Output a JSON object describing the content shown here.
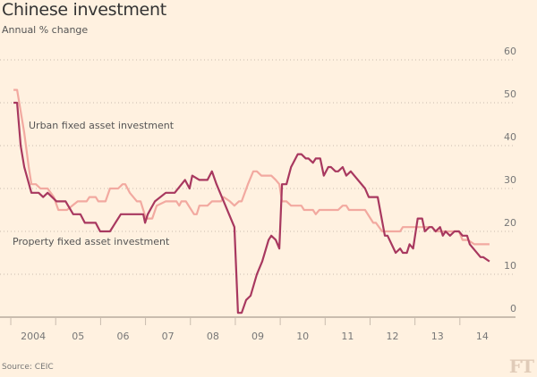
{
  "chart_data": {
    "type": "line",
    "title": "Chinese investment",
    "subtitle": "Annual % change",
    "source": "Source: CEIC",
    "logo": "FT",
    "ylim": [
      0,
      60
    ],
    "yticks": [
      0,
      10,
      20,
      30,
      40,
      50,
      60
    ],
    "xlim": [
      2003.76,
      2015.0
    ],
    "xtick_labels": [
      {
        "year": 2004,
        "label": "2004"
      },
      {
        "year": 2005,
        "label": "05"
      },
      {
        "year": 2006,
        "label": "06"
      },
      {
        "year": 2007,
        "label": "07"
      },
      {
        "year": 2008,
        "label": "08"
      },
      {
        "year": 2009,
        "label": "09"
      },
      {
        "year": 2010,
        "label": "10"
      },
      {
        "year": 2011,
        "label": "11"
      },
      {
        "year": 2012,
        "label": "12"
      },
      {
        "year": 2013,
        "label": "13"
      },
      {
        "year": 2014,
        "label": "14"
      }
    ],
    "grid": true,
    "y_axis_position": "right",
    "series": [
      {
        "name": "Urban fixed asset investment",
        "color": "#f2a9a0",
        "x": [
          2004.06,
          2004.14,
          2004.3,
          2004.4,
          2004.46,
          2004.56,
          2004.66,
          2004.82,
          2004.96,
          2005.06,
          2005.25,
          2005.49,
          2005.69,
          2005.75,
          2005.89,
          2005.95,
          2006.11,
          2006.21,
          2006.39,
          2006.49,
          2006.55,
          2006.65,
          2006.81,
          2006.89,
          2007.01,
          2007.15,
          2007.25,
          2007.45,
          2007.69,
          2007.75,
          2007.8,
          2007.9,
          2008.08,
          2008.14,
          2008.2,
          2008.38,
          2008.48,
          2008.68,
          2008.74,
          2008.88,
          2008.98,
          2009.08,
          2009.14,
          2009.28,
          2009.4,
          2009.48,
          2009.58,
          2009.74,
          2009.8,
          2009.9,
          2009.98,
          2010.04,
          2010.14,
          2010.24,
          2010.47,
          2010.53,
          2010.73,
          2010.79,
          2010.87,
          2011.29,
          2011.39,
          2011.47,
          2011.53,
          2011.89,
          2012.07,
          2012.13,
          2012.27,
          2012.67,
          2012.73,
          2013.12,
          2013.38,
          2013.46,
          2013.98,
          2014.06,
          2014.18,
          2014.32,
          2014.66
        ],
        "values": [
          53,
          53,
          43,
          35,
          31,
          31,
          30,
          30,
          28,
          25,
          25,
          27,
          27,
          28,
          28,
          27,
          27,
          30,
          30,
          31,
          31,
          29,
          27,
          27,
          23,
          23,
          26,
          27,
          27,
          26,
          27,
          27,
          24,
          24,
          26,
          26,
          27,
          27,
          28,
          27,
          26,
          27,
          27,
          31,
          34,
          34,
          33,
          33,
          33,
          32,
          31,
          27,
          27,
          26,
          26,
          25,
          25,
          24,
          25,
          25,
          26,
          26,
          25,
          25,
          22,
          22,
          20,
          20,
          21,
          21,
          21,
          20,
          20,
          18,
          18,
          17,
          17
        ]
      },
      {
        "name": "Property fixed asset investment",
        "color": "#a8385f",
        "x": [
          2004.06,
          2004.14,
          2004.22,
          2004.3,
          2004.46,
          2004.62,
          2004.72,
          2004.82,
          2005.02,
          2005.22,
          2005.39,
          2005.55,
          2005.65,
          2005.89,
          2005.99,
          2006.21,
          2006.45,
          2006.95,
          2006.99,
          2007.05,
          2007.21,
          2007.45,
          2007.65,
          2007.88,
          2007.98,
          2008.04,
          2008.2,
          2008.38,
          2008.48,
          2008.58,
          2008.98,
          2009.06,
          2009.14,
          2009.24,
          2009.34,
          2009.48,
          2009.6,
          2009.74,
          2009.8,
          2009.9,
          2009.98,
          2010.04,
          2010.14,
          2010.24,
          2010.29,
          2010.39,
          2010.47,
          2010.57,
          2010.63,
          2010.73,
          2010.79,
          2010.89,
          2010.97,
          2011.07,
          2011.13,
          2011.23,
          2011.29,
          2011.39,
          2011.47,
          2011.57,
          2011.89,
          2011.97,
          2012.17,
          2012.33,
          2012.39,
          2012.57,
          2012.67,
          2012.73,
          2012.82,
          2012.88,
          2012.96,
          2013.06,
          2013.16,
          2013.22,
          2013.32,
          2013.38,
          2013.46,
          2013.56,
          2013.62,
          2013.68,
          2013.78,
          2013.88,
          2013.98,
          2014.06,
          2014.16,
          2014.22,
          2014.46,
          2014.52,
          2014.66
        ],
        "values": [
          50,
          50,
          40,
          35,
          29,
          29,
          28,
          29,
          27,
          27,
          24,
          24,
          22,
          22,
          20,
          20,
          24,
          24,
          22,
          24,
          27,
          29,
          29,
          32,
          30,
          33,
          32,
          32,
          34,
          31,
          21,
          1,
          1,
          4,
          5,
          10,
          13,
          18,
          19,
          18,
          16,
          31,
          31,
          35,
          36,
          38,
          38,
          37,
          37,
          36,
          37,
          37,
          33,
          35,
          35,
          34,
          34,
          35,
          33,
          34,
          30,
          28,
          28,
          19,
          19,
          15,
          16,
          15,
          15,
          17,
          16,
          23,
          23,
          20,
          21,
          21,
          20,
          21,
          19,
          20,
          19,
          20,
          20,
          19,
          19,
          17,
          14,
          14,
          13
        ]
      }
    ],
    "annotations": [
      {
        "text": "Urban fixed asset investment",
        "series": "Urban fixed asset investment"
      },
      {
        "text": "Property fixed asset investment",
        "series": "Property fixed asset investment"
      }
    ]
  }
}
